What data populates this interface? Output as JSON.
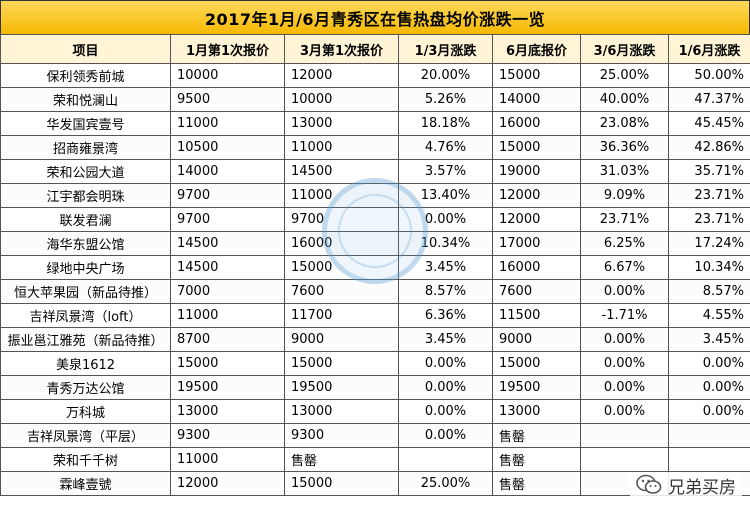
{
  "title": "2017年1月/6月青秀区在售热盘均价涨跌一览",
  "headers": [
    "项目",
    "1月第1次报价",
    "3月第1次报价",
    "1/3月涨跌",
    "6月底报价",
    "3/6月涨跌",
    "1/6月涨跌"
  ],
  "rows": [
    [
      "保利领秀前城",
      "10000",
      "12000",
      "20.00%",
      "15000",
      "25.00%",
      "50.00%"
    ],
    [
      "荣和悦澜山",
      "9500",
      "10000",
      "5.26%",
      "14000",
      "40.00%",
      "47.37%"
    ],
    [
      "华发国宾壹号",
      "11000",
      "13000",
      "18.18%",
      "16000",
      "23.08%",
      "45.45%"
    ],
    [
      "招商雍景湾",
      "10500",
      "11000",
      "4.76%",
      "15000",
      "36.36%",
      "42.86%"
    ],
    [
      "荣和公园大道",
      "14000",
      "14500",
      "3.57%",
      "19000",
      "31.03%",
      "35.71%"
    ],
    [
      "江宇都会明珠",
      "9700",
      "11000",
      "13.40%",
      "12000",
      "9.09%",
      "23.71%"
    ],
    [
      "联发君澜",
      "9700",
      "9700",
      "0.00%",
      "12000",
      "23.71%",
      "23.71%"
    ],
    [
      "海华东盟公馆",
      "14500",
      "16000",
      "10.34%",
      "17000",
      "6.25%",
      "17.24%"
    ],
    [
      "绿地中央广场",
      "14500",
      "15000",
      "3.45%",
      "16000",
      "6.67%",
      "10.34%"
    ],
    [
      "恒大苹果园（新品待推）",
      "7000",
      "7600",
      "8.57%",
      "7600",
      "0.00%",
      "8.57%"
    ],
    [
      "吉祥凤景湾（loft）",
      "11000",
      "11700",
      "6.36%",
      "11500",
      "-1.71%",
      "4.55%"
    ],
    [
      "振业邕江雅苑（新品待推）",
      "8700",
      "9000",
      "3.45%",
      "9000",
      "0.00%",
      "3.45%"
    ],
    [
      "美泉1612",
      "15000",
      "15000",
      "0.00%",
      "15000",
      "0.00%",
      "0.00%"
    ],
    [
      "青秀万达公馆",
      "19500",
      "19500",
      "0.00%",
      "19500",
      "0.00%",
      "0.00%"
    ],
    [
      "万科城",
      "13000",
      "13000",
      "0.00%",
      "13000",
      "0.00%",
      "0.00%"
    ],
    [
      "吉祥凤景湾（平层）",
      "9300",
      "9300",
      "0.00%",
      "售罄",
      "",
      ""
    ],
    [
      "荣和千千树",
      "11000",
      "售罄",
      "",
      "售罄",
      "",
      ""
    ],
    [
      "霖峰壹號",
      "12000",
      "15000",
      "25.00%",
      "售罄",
      "",
      ""
    ]
  ],
  "brand": {
    "name": "兄弟买房",
    "icon": "wechat-icon"
  },
  "watermark_icon": "stamp-watermark-icon",
  "colors": {
    "title_bg": "#f5b800",
    "header_bg": "#fff5d6",
    "border": "#555555"
  }
}
